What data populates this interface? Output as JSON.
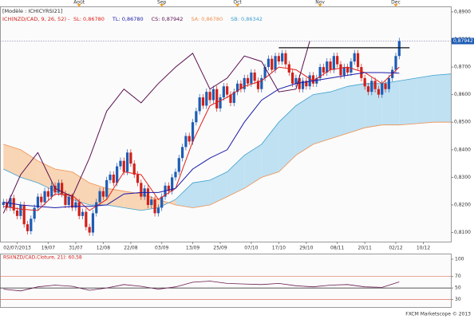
{
  "chart_data": [
    {
      "type": "candlestick",
      "model": "[Modèle : ICHICYRSI21]",
      "indicator": "ICH(NZD/CAD, 9, 26, 52) -",
      "up_color": "#1e5cb4",
      "down_color": "#d0201a",
      "xlim": [
        -1,
        130
      ],
      "ylim": [
        0.8067,
        0.8917
      ],
      "xticks": [
        {
          "value": 4,
          "label": "02/07/2013"
        },
        {
          "value": 13,
          "label": "19/07"
        },
        {
          "value": 21,
          "label": "31/07"
        },
        {
          "value": 29,
          "label": "12/08"
        },
        {
          "value": 37,
          "label": "22/08"
        },
        {
          "value": 46,
          "label": "03/09"
        },
        {
          "value": 55,
          "label": "13/09"
        },
        {
          "value": 63,
          "label": "25/09"
        },
        {
          "value": 72,
          "label": "07/10"
        },
        {
          "value": 80,
          "label": "17/10"
        },
        {
          "value": 88,
          "label": "29/10"
        },
        {
          "value": 97,
          "label": "08/11"
        },
        {
          "value": 105,
          "label": "20/11"
        },
        {
          "value": 114,
          "label": "02/12"
        },
        {
          "value": 122,
          "label": "10/12"
        }
      ],
      "top_ticks": [
        {
          "value": 22,
          "label": "Août"
        },
        {
          "value": 46,
          "label": "Sep"
        },
        {
          "value": 68,
          "label": "Oct"
        },
        {
          "value": 92,
          "label": "Nov"
        },
        {
          "value": 114,
          "label": "Dec"
        }
      ],
      "yticks": [
        {
          "value": 0.81,
          "label": "0,8100"
        },
        {
          "value": 0.82,
          "label": "0,8200"
        },
        {
          "value": 0.83,
          "label": "0,8300"
        },
        {
          "value": 0.84,
          "label": "0,8400"
        },
        {
          "value": 0.85,
          "label": "0,8500"
        },
        {
          "value": 0.86,
          "label": "0,8600"
        },
        {
          "value": 0.87,
          "label": "0,8700"
        },
        {
          "value": 0.88,
          "label": "0,8800"
        },
        {
          "value": 0.89,
          "label": "0,8900"
        }
      ],
      "current_price": {
        "value": 0.87942,
        "label": "0,87942"
      },
      "resistance": {
        "value": 0.877,
        "x": [
          80,
          118
        ]
      },
      "cloud_colors": {
        "sa_above": "#f8d5b5",
        "sb_above": "#bfe1f2"
      },
      "ohlc": [
        [
          0.82,
          0.8222,
          0.8188,
          0.821
        ],
        [
          0.821,
          0.8222,
          0.8178,
          0.819
        ],
        [
          0.819,
          0.8237,
          0.8178,
          0.8225
        ],
        [
          0.8225,
          0.8237,
          0.8168,
          0.818
        ],
        [
          0.818,
          0.8192,
          0.8148,
          0.816
        ],
        [
          0.816,
          0.8212,
          0.8148,
          0.82
        ],
        [
          0.82,
          0.8212,
          0.8118,
          0.813
        ],
        [
          0.813,
          0.8142,
          0.8093,
          0.8105
        ],
        [
          0.8105,
          0.8162,
          0.8093,
          0.815
        ],
        [
          0.815,
          0.8202,
          0.8138,
          0.819
        ],
        [
          0.819,
          0.8242,
          0.8178,
          0.823
        ],
        [
          0.823,
          0.8242,
          0.8198,
          0.821
        ],
        [
          0.821,
          0.8262,
          0.8198,
          0.825
        ],
        [
          0.825,
          0.8262,
          0.8218,
          0.823
        ],
        [
          0.823,
          0.8282,
          0.8218,
          0.827
        ],
        [
          0.827,
          0.8282,
          0.8233,
          0.8245
        ],
        [
          0.8245,
          0.8292,
          0.8233,
          0.828
        ],
        [
          0.828,
          0.8292,
          0.8228,
          0.824
        ],
        [
          0.824,
          0.8252,
          0.8188,
          0.82
        ],
        [
          0.82,
          0.8242,
          0.8188,
          0.823
        ],
        [
          0.823,
          0.8242,
          0.8178,
          0.819
        ],
        [
          0.819,
          0.8222,
          0.8178,
          0.821
        ],
        [
          0.821,
          0.8222,
          0.8148,
          0.816
        ],
        [
          0.816,
          0.8187,
          0.8148,
          0.8175
        ],
        [
          0.8175,
          0.8187,
          0.8108,
          0.812
        ],
        [
          0.812,
          0.8132,
          0.8088,
          0.81
        ],
        [
          0.81,
          0.8182,
          0.8088,
          0.817
        ],
        [
          0.817,
          0.8222,
          0.8158,
          0.821
        ],
        [
          0.821,
          0.8262,
          0.8198,
          0.825
        ],
        [
          0.825,
          0.8262,
          0.8218,
          0.823
        ],
        [
          0.823,
          0.8302,
          0.8218,
          0.829
        ],
        [
          0.829,
          0.8322,
          0.8278,
          0.831
        ],
        [
          0.831,
          0.8322,
          0.8268,
          0.828
        ],
        [
          0.828,
          0.8352,
          0.8268,
          0.834
        ],
        [
          0.834,
          0.8372,
          0.8328,
          0.836
        ],
        [
          0.836,
          0.8372,
          0.8308,
          0.832
        ],
        [
          0.832,
          0.8402,
          0.8308,
          0.839
        ],
        [
          0.839,
          0.8402,
          0.8338,
          0.835
        ],
        [
          0.835,
          0.8362,
          0.8298,
          0.831
        ],
        [
          0.831,
          0.8322,
          0.8268,
          0.828
        ],
        [
          0.828,
          0.8292,
          0.8218,
          0.823
        ],
        [
          0.823,
          0.8272,
          0.8218,
          0.826
        ],
        [
          0.826,
          0.8272,
          0.8188,
          0.82
        ],
        [
          0.82,
          0.8232,
          0.8188,
          0.822
        ],
        [
          0.822,
          0.8232,
          0.8158,
          0.817
        ],
        [
          0.817,
          0.8202,
          0.8158,
          0.819
        ],
        [
          0.819,
          0.8242,
          0.8178,
          0.823
        ],
        [
          0.823,
          0.8282,
          0.8218,
          0.827
        ],
        [
          0.827,
          0.8282,
          0.8238,
          0.825
        ],
        [
          0.825,
          0.8312,
          0.8238,
          0.83
        ],
        [
          0.83,
          0.8332,
          0.8288,
          0.832
        ],
        [
          0.832,
          0.8382,
          0.8308,
          0.837
        ],
        [
          0.837,
          0.8422,
          0.8358,
          0.841
        ],
        [
          0.841,
          0.8462,
          0.8398,
          0.845
        ],
        [
          0.845,
          0.8462,
          0.8418,
          0.843
        ],
        [
          0.843,
          0.8512,
          0.8418,
          0.85
        ],
        [
          0.85,
          0.8552,
          0.8488,
          0.854
        ],
        [
          0.854,
          0.8602,
          0.8528,
          0.859
        ],
        [
          0.859,
          0.8602,
          0.8548,
          0.856
        ],
        [
          0.856,
          0.8622,
          0.8548,
          0.861
        ],
        [
          0.861,
          0.8622,
          0.8568,
          0.858
        ],
        [
          0.858,
          0.8632,
          0.8568,
          0.862
        ],
        [
          0.862,
          0.8632,
          0.8538,
          0.855
        ],
        [
          0.855,
          0.8602,
          0.8538,
          0.859
        ],
        [
          0.859,
          0.8642,
          0.8578,
          0.863
        ],
        [
          0.863,
          0.8642,
          0.8588,
          0.86
        ],
        [
          0.86,
          0.8612,
          0.8558,
          0.857
        ],
        [
          0.857,
          0.8622,
          0.8558,
          0.861
        ],
        [
          0.861,
          0.8652,
          0.8598,
          0.864
        ],
        [
          0.864,
          0.8652,
          0.8608,
          0.862
        ],
        [
          0.862,
          0.8672,
          0.8608,
          0.866
        ],
        [
          0.866,
          0.8672,
          0.8628,
          0.864
        ],
        [
          0.864,
          0.8692,
          0.8628,
          0.868
        ],
        [
          0.868,
          0.8692,
          0.8638,
          0.865
        ],
        [
          0.865,
          0.8662,
          0.8608,
          0.862
        ],
        [
          0.862,
          0.8672,
          0.8608,
          0.866
        ],
        [
          0.866,
          0.8712,
          0.8648,
          0.87
        ],
        [
          0.87,
          0.8742,
          0.8688,
          0.873
        ],
        [
          0.873,
          0.8742,
          0.8678,
          0.869
        ],
        [
          0.869,
          0.8752,
          0.8678,
          0.874
        ],
        [
          0.874,
          0.8752,
          0.8708,
          0.872
        ],
        [
          0.872,
          0.8762,
          0.8708,
          0.875
        ],
        [
          0.875,
          0.8762,
          0.8698,
          0.871
        ],
        [
          0.871,
          0.8722,
          0.8668,
          0.868
        ],
        [
          0.868,
          0.8692,
          0.8628,
          0.864
        ],
        [
          0.864,
          0.8672,
          0.8628,
          0.866
        ],
        [
          0.866,
          0.8672,
          0.8608,
          0.862
        ],
        [
          0.862,
          0.8662,
          0.8608,
          0.865
        ],
        [
          0.865,
          0.8662,
          0.8618,
          0.863
        ],
        [
          0.863,
          0.8682,
          0.8618,
          0.867
        ],
        [
          0.867,
          0.8682,
          0.8628,
          0.864
        ],
        [
          0.864,
          0.8672,
          0.8628,
          0.866
        ],
        [
          0.866,
          0.8712,
          0.8648,
          0.87
        ],
        [
          0.87,
          0.8712,
          0.8668,
          0.868
        ],
        [
          0.868,
          0.8732,
          0.8668,
          0.872
        ],
        [
          0.872,
          0.8732,
          0.8678,
          0.869
        ],
        [
          0.869,
          0.8752,
          0.8678,
          0.874
        ],
        [
          0.874,
          0.8752,
          0.8698,
          0.871
        ],
        [
          0.871,
          0.8722,
          0.8658,
          0.867
        ],
        [
          0.867,
          0.8712,
          0.8658,
          0.87
        ],
        [
          0.87,
          0.8712,
          0.8668,
          0.868
        ],
        [
          0.868,
          0.8732,
          0.8668,
          0.872
        ],
        [
          0.872,
          0.8762,
          0.8708,
          0.875
        ],
        [
          0.875,
          0.8762,
          0.8688,
          0.87
        ],
        [
          0.87,
          0.8712,
          0.8648,
          0.866
        ],
        [
          0.866,
          0.8672,
          0.8618,
          0.863
        ],
        [
          0.863,
          0.8642,
          0.8598,
          0.861
        ],
        [
          0.861,
          0.8662,
          0.8598,
          0.865
        ],
        [
          0.865,
          0.8662,
          0.8608,
          0.862
        ],
        [
          0.862,
          0.8632,
          0.8588,
          0.86
        ],
        [
          0.86,
          0.8652,
          0.8588,
          0.864
        ],
        [
          0.864,
          0.8652,
          0.8608,
          0.862
        ],
        [
          0.862,
          0.8672,
          0.8608,
          0.866
        ],
        [
          0.866,
          0.8702,
          0.8648,
          0.869
        ],
        [
          0.869,
          0.8752,
          0.8678,
          0.874
        ],
        [
          0.874,
          0.8806,
          0.8728,
          0.8794
        ]
      ],
      "series": [
        {
          "name": "SL: 0,86780",
          "color": "#e0201a",
          "x": [
            0,
            5,
            10,
            15,
            20,
            25,
            30,
            35,
            40,
            45,
            50,
            55,
            60,
            65,
            70,
            75,
            80,
            85,
            90,
            95,
            100,
            105,
            110,
            115
          ],
          "values": [
            0.8195,
            0.8185,
            0.818,
            0.824,
            0.8235,
            0.818,
            0.822,
            0.832,
            0.831,
            0.822,
            0.826,
            0.843,
            0.856,
            0.859,
            0.863,
            0.865,
            0.87,
            0.869,
            0.865,
            0.869,
            0.87,
            0.868,
            0.864,
            0.87
          ]
        },
        {
          "name": "TL: 0,86780",
          "color": "#1a1aa8",
          "x": [
            0,
            5,
            10,
            15,
            20,
            25,
            30,
            35,
            40,
            45,
            50,
            55,
            60,
            65,
            70,
            75,
            80,
            85,
            90,
            95,
            100,
            105,
            110,
            115
          ],
          "values": [
            0.821,
            0.82,
            0.8195,
            0.819,
            0.8195,
            0.8195,
            0.82,
            0.824,
            0.8245,
            0.8245,
            0.826,
            0.833,
            0.837,
            0.84,
            0.85,
            0.858,
            0.862,
            0.864,
            0.865,
            0.866,
            0.867,
            0.868,
            0.868,
            0.8678
          ]
        },
        {
          "name": "CS: 0,87942",
          "color": "#5a1050",
          "x": [
            0,
            5,
            10,
            15,
            20,
            25,
            30,
            35,
            40,
            45,
            50,
            55,
            60,
            65,
            70,
            75,
            80,
            85,
            89
          ],
          "values": [
            0.817,
            0.831,
            0.839,
            0.826,
            0.823,
            0.837,
            0.854,
            0.862,
            0.857,
            0.864,
            0.87,
            0.875,
            0.862,
            0.866,
            0.874,
            0.872,
            0.861,
            0.862,
            0.8794
          ]
        },
        {
          "name": "SA: 0,86780",
          "color": "#f09050",
          "x": [
            0,
            5,
            10,
            15,
            20,
            25,
            30,
            35,
            40,
            45,
            50,
            55,
            60,
            65,
            70,
            75,
            80,
            85,
            90,
            95,
            100,
            105,
            110,
            115,
            120,
            125,
            130
          ],
          "values": [
            0.842,
            0.84,
            0.836,
            0.833,
            0.832,
            0.828,
            0.826,
            0.825,
            0.824,
            0.822,
            0.82,
            0.819,
            0.82,
            0.823,
            0.826,
            0.83,
            0.832,
            0.838,
            0.842,
            0.844,
            0.846,
            0.848,
            0.849,
            0.849,
            0.8495,
            0.85,
            0.85
          ]
        },
        {
          "name": "SB: 0,86342",
          "color": "#40a0d0",
          "x": [
            0,
            5,
            10,
            15,
            20,
            25,
            30,
            35,
            40,
            45,
            50,
            55,
            60,
            65,
            70,
            75,
            80,
            85,
            90,
            95,
            100,
            105,
            110,
            115,
            120,
            125,
            130
          ],
          "values": [
            0.833,
            0.83,
            0.828,
            0.825,
            0.822,
            0.82,
            0.82,
            0.819,
            0.818,
            0.819,
            0.822,
            0.828,
            0.829,
            0.832,
            0.838,
            0.842,
            0.85,
            0.856,
            0.86,
            0.861,
            0.863,
            0.864,
            0.864,
            0.865,
            0.866,
            0.867,
            0.8675
          ]
        }
      ]
    },
    {
      "type": "line",
      "title": "RSI(NZD/CAD,Cloture, 21): 60,58",
      "xlim": [
        -1,
        130
      ],
      "ylim": [
        17,
        100
      ],
      "yticks": [
        30,
        50,
        70,
        100
      ],
      "levels": [
        {
          "value": 70,
          "color": "#e07060"
        },
        {
          "value": 50,
          "color": "#222222"
        },
        {
          "value": 30,
          "color": "#e07060"
        }
      ],
      "series": [
        {
          "name": "RSI",
          "color": "#6a1a50",
          "x": [
            0,
            5,
            10,
            15,
            20,
            25,
            30,
            35,
            40,
            45,
            50,
            55,
            60,
            65,
            70,
            75,
            80,
            85,
            90,
            95,
            100,
            105,
            110,
            115
          ],
          "values": [
            48,
            45,
            52,
            55,
            53,
            46,
            50,
            56,
            53,
            48,
            52,
            60,
            62,
            58,
            57,
            56,
            58,
            54,
            52,
            55,
            56,
            52,
            51,
            60.58
          ]
        }
      ]
    }
  ],
  "footer": "FXCM Marketscope © 2013"
}
